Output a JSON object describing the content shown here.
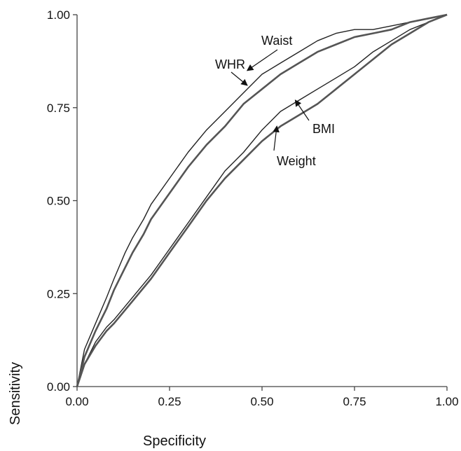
{
  "chart_data": {
    "type": "line",
    "title": "",
    "xlabel": "Specificity",
    "ylabel": "Sensitivity",
    "xlim": [
      0,
      1
    ],
    "ylim": [
      0,
      1
    ],
    "x_ticks": [
      "0.00",
      "0.25",
      "0.50",
      "0.75",
      "1.00"
    ],
    "y_ticks": [
      "0.00",
      "0.25",
      "0.50",
      "0.75",
      "1.00"
    ],
    "grid": false,
    "legend": "none",
    "series": [
      {
        "name": "WHR",
        "color": "#222222",
        "x": [
          0,
          0.02,
          0.05,
          0.08,
          0.1,
          0.13,
          0.15,
          0.18,
          0.2,
          0.25,
          0.3,
          0.35,
          0.4,
          0.45,
          0.5,
          0.55,
          0.6,
          0.65,
          0.7,
          0.75,
          0.8,
          0.85,
          0.9,
          0.95,
          1.0
        ],
        "y": [
          0,
          0.1,
          0.17,
          0.24,
          0.29,
          0.36,
          0.4,
          0.45,
          0.49,
          0.56,
          0.63,
          0.69,
          0.74,
          0.79,
          0.84,
          0.87,
          0.9,
          0.93,
          0.95,
          0.96,
          0.96,
          0.97,
          0.98,
          0.99,
          1.0
        ]
      },
      {
        "name": "Waist",
        "color": "#555555",
        "x": [
          0,
          0.02,
          0.05,
          0.08,
          0.1,
          0.13,
          0.15,
          0.18,
          0.2,
          0.25,
          0.3,
          0.35,
          0.4,
          0.45,
          0.5,
          0.55,
          0.6,
          0.65,
          0.7,
          0.75,
          0.8,
          0.85,
          0.9,
          0.95,
          1.0
        ],
        "y": [
          0,
          0.08,
          0.15,
          0.21,
          0.26,
          0.32,
          0.36,
          0.41,
          0.45,
          0.52,
          0.59,
          0.65,
          0.7,
          0.76,
          0.8,
          0.84,
          0.87,
          0.9,
          0.92,
          0.94,
          0.95,
          0.96,
          0.98,
          0.99,
          1.0
        ]
      },
      {
        "name": "BMI",
        "color": "#222222",
        "x": [
          0,
          0.02,
          0.05,
          0.08,
          0.1,
          0.15,
          0.2,
          0.25,
          0.3,
          0.35,
          0.4,
          0.45,
          0.5,
          0.55,
          0.6,
          0.65,
          0.7,
          0.75,
          0.8,
          0.85,
          0.9,
          0.95,
          1.0
        ],
        "y": [
          0,
          0.06,
          0.12,
          0.16,
          0.18,
          0.24,
          0.3,
          0.37,
          0.44,
          0.51,
          0.58,
          0.63,
          0.69,
          0.74,
          0.77,
          0.8,
          0.83,
          0.86,
          0.9,
          0.93,
          0.96,
          0.98,
          1.0
        ]
      },
      {
        "name": "Weight",
        "color": "#555555",
        "x": [
          0,
          0.02,
          0.05,
          0.08,
          0.1,
          0.15,
          0.2,
          0.25,
          0.3,
          0.35,
          0.4,
          0.45,
          0.5,
          0.55,
          0.6,
          0.65,
          0.7,
          0.75,
          0.8,
          0.85,
          0.9,
          0.95,
          1.0
        ],
        "y": [
          0,
          0.06,
          0.11,
          0.15,
          0.17,
          0.23,
          0.29,
          0.36,
          0.43,
          0.5,
          0.56,
          0.61,
          0.66,
          0.7,
          0.73,
          0.76,
          0.8,
          0.84,
          0.88,
          0.92,
          0.95,
          0.98,
          1.0
        ]
      }
    ],
    "annotations": [
      {
        "text": "WHR",
        "target_x": 0.46,
        "target_y": 0.81
      },
      {
        "text": "Waist",
        "target_x": 0.46,
        "target_y": 0.85
      },
      {
        "text": "BMI",
        "target_x": 0.59,
        "target_y": 0.77
      },
      {
        "text": "Weight",
        "target_x": 0.54,
        "target_y": 0.7
      }
    ]
  }
}
